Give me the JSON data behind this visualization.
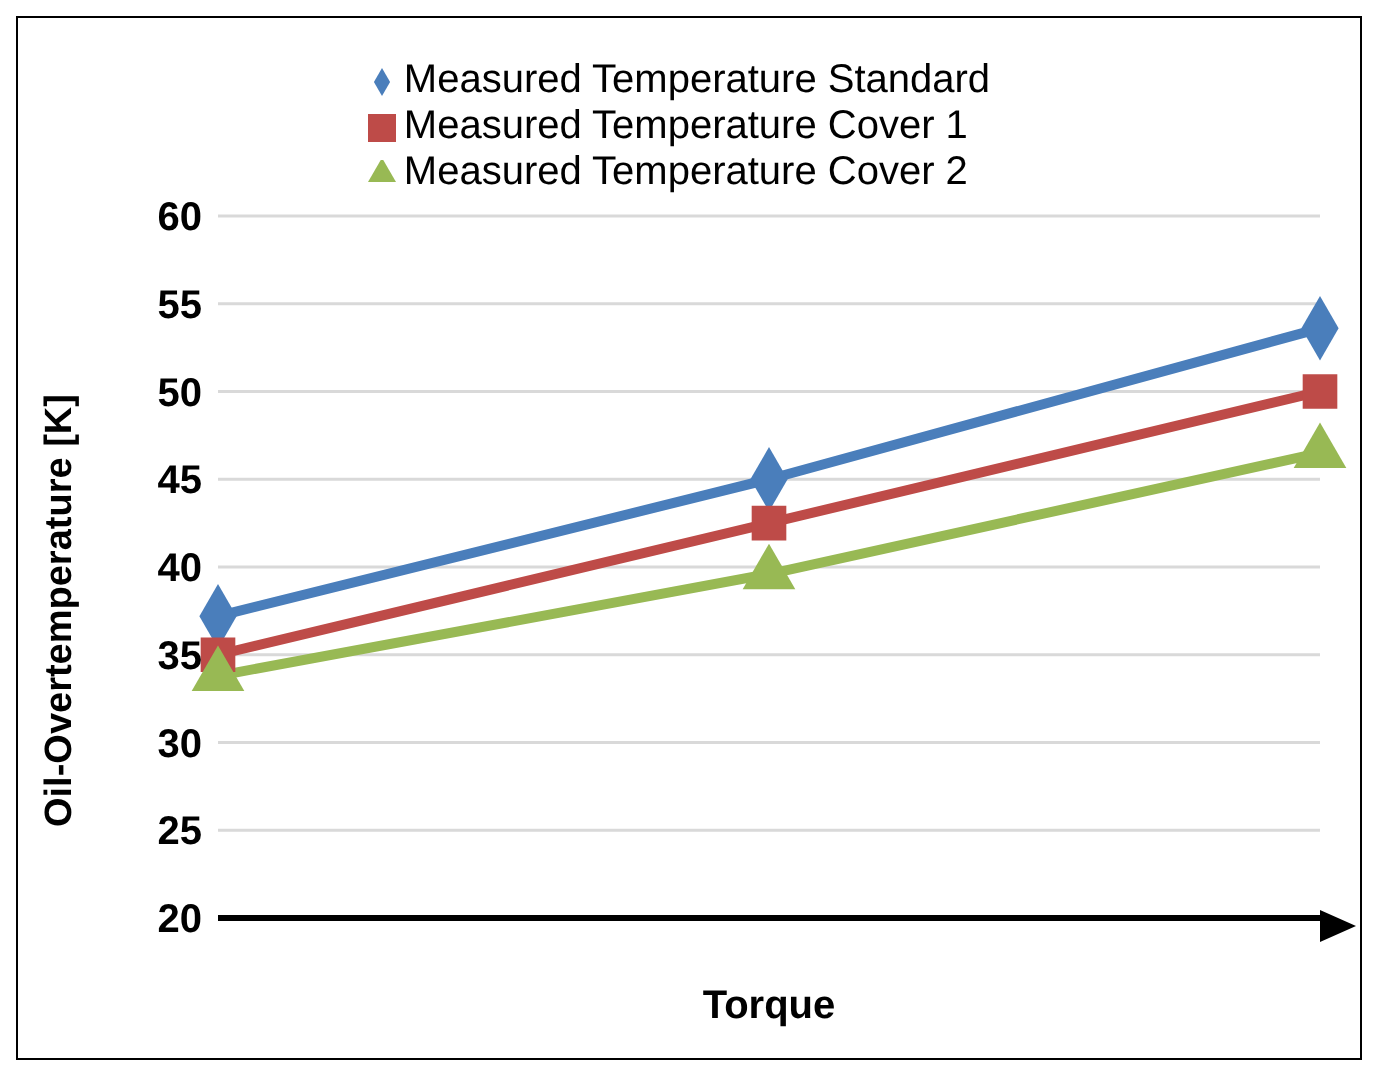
{
  "chart_data": {
    "type": "line",
    "xlabel": "Torque",
    "ylabel": "Oil-Overtemperature [K]",
    "categories": [
      null,
      null,
      null
    ],
    "series": [
      {
        "name": "Measured Temperature Standard",
        "color": "#4a7ebb",
        "values": [
          37.2,
          45,
          53.6
        ],
        "marker": "diamond"
      },
      {
        "name": "Measured Temperature Cover 1",
        "color": "#be4b48",
        "values": [
          35,
          42.5,
          50
        ],
        "marker": "square"
      },
      {
        "name": "Measured Temperature Cover 2",
        "color": "#98b954",
        "values": [
          33.8,
          39.6,
          46.5
        ],
        "marker": "triangle"
      }
    ],
    "ylim": [
      20,
      60
    ],
    "yticks": [
      20,
      25,
      30,
      35,
      40,
      45,
      50,
      55,
      60
    ],
    "grid": "y",
    "legend": "top",
    "tick_labels": "y",
    "line_style": "solid"
  }
}
